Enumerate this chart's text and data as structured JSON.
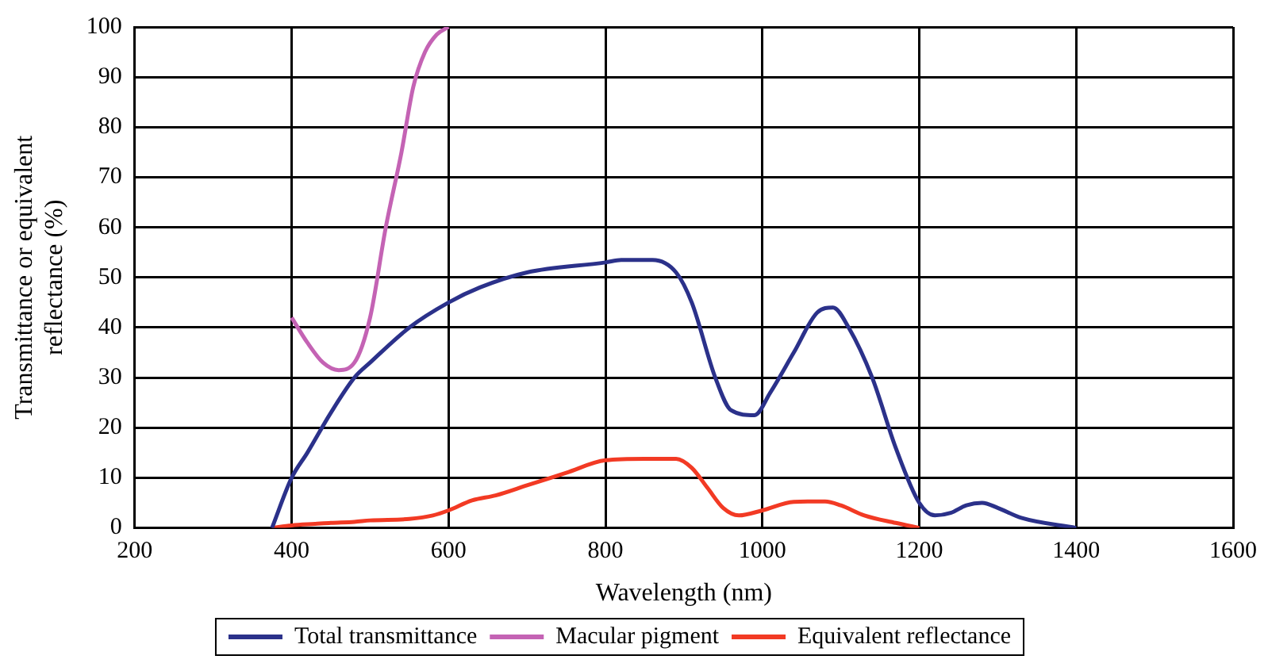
{
  "chart_data": {
    "type": "line",
    "xlabel": "Wavelength (nm)",
    "ylabel": "Transmittance or equivalent reflectance (%)",
    "xlim": [
      200,
      1600
    ],
    "xticks": [
      200,
      400,
      600,
      800,
      1000,
      1200,
      1400,
      1600
    ],
    "ylim": [
      0,
      100
    ],
    "yticks": [
      0,
      10,
      20,
      30,
      40,
      50,
      60,
      70,
      80,
      90,
      100
    ],
    "grid": true,
    "legend": "bottom",
    "marker": "none",
    "line_style": "solid",
    "series": [
      {
        "name": "Total transmittance",
        "color": "#2b318a",
        "x": [
          375,
          400,
          420,
          450,
          480,
          500,
          550,
          600,
          640,
          700,
          800,
          820,
          860,
          890,
          910,
          940,
          960,
          990,
          1010,
          1040,
          1070,
          1090,
          1110,
          1140,
          1170,
          1200,
          1220,
          1240,
          1260,
          1280,
          1300,
          1330,
          1400
        ],
        "values": [
          0,
          10,
          15,
          23,
          30,
          33,
          40,
          45,
          48,
          51,
          53,
          53.5,
          53.5,
          51,
          45,
          30,
          23.5,
          22.5,
          27,
          35,
          43,
          44,
          40,
          30,
          16,
          5,
          2.5,
          3,
          4.5,
          5,
          4,
          2,
          0
        ]
      },
      {
        "name": "Macular pigment",
        "color": "#c463b4",
        "x": [
          400,
          420,
          440,
          460,
          480,
          500,
          520,
          540,
          555,
          570,
          585,
          600
        ],
        "values": [
          42,
          37,
          33,
          31.5,
          33,
          42,
          60,
          75,
          88,
          95,
          98.5,
          100
        ]
      },
      {
        "name": "Equivalent reflectance",
        "color": "#f23a24",
        "x": [
          375,
          400,
          430,
          450,
          480,
          500,
          550,
          580,
          600,
          630,
          660,
          700,
          750,
          800,
          850,
          890,
          910,
          930,
          950,
          970,
          1000,
          1040,
          1080,
          1100,
          1130,
          1170,
          1200
        ],
        "values": [
          0,
          0.5,
          0.8,
          1,
          1.2,
          1.5,
          1.8,
          2.5,
          3.5,
          5.5,
          6.5,
          8.5,
          11,
          13.5,
          13.8,
          13.8,
          12,
          8,
          4,
          2.5,
          3.5,
          5.2,
          5.3,
          4.5,
          2.5,
          1,
          0
        ]
      }
    ]
  }
}
